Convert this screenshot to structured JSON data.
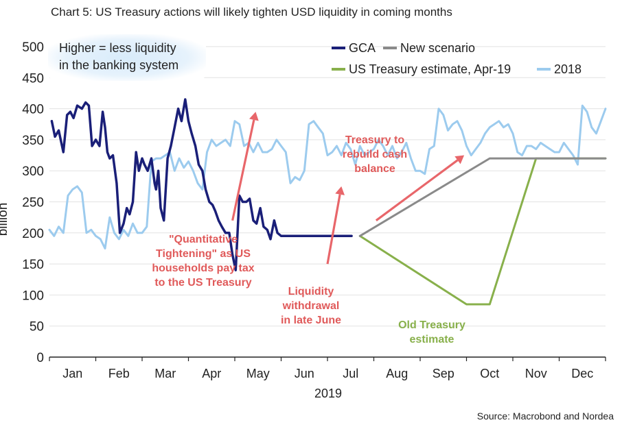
{
  "title": "Chart 5: US Treasury actions will likely tighten USD liquidity in coming months",
  "source": "Source: Macrobond and Nordea",
  "chart_data": {
    "type": "line",
    "ylabel": "billion",
    "xlabel": "2019",
    "ylim": [
      0,
      500
    ],
    "yticks": [
      0,
      50,
      100,
      150,
      200,
      250,
      300,
      350,
      400,
      450,
      500
    ],
    "months": [
      "Jan",
      "Feb",
      "Mar",
      "Apr",
      "May",
      "Jun",
      "Jul",
      "Aug",
      "Sep",
      "Oct",
      "Nov",
      "Dec"
    ],
    "x_unit": "month of year (0 = start of Jan, 12 = end of Dec)",
    "grid": true,
    "legend_placement": "top-right",
    "series": [
      {
        "name": "GCA",
        "color": "#1a1f78",
        "x": [
          0.05,
          0.12,
          0.2,
          0.3,
          0.38,
          0.45,
          0.52,
          0.6,
          0.7,
          0.78,
          0.85,
          0.92,
          1.0,
          1.08,
          1.15,
          1.2,
          1.25,
          1.3,
          1.37,
          1.45,
          1.52,
          1.6,
          1.67,
          1.73,
          1.8,
          1.87,
          1.93,
          2.0,
          2.05,
          2.12,
          2.2,
          2.27,
          2.3,
          2.35,
          2.4,
          2.47,
          2.55,
          2.62,
          2.7,
          2.78,
          2.85,
          2.93,
          3.0,
          3.07,
          3.15,
          3.22,
          3.3,
          3.37,
          3.45,
          3.52,
          3.58,
          3.65,
          3.72,
          3.8,
          3.88,
          3.95,
          4.02,
          4.1,
          4.17,
          4.25,
          4.32,
          4.4,
          4.47,
          4.55,
          4.62,
          4.7,
          4.77,
          4.85,
          4.92,
          5.0,
          5.07,
          5.12,
          5.18,
          5.23,
          5.27,
          5.32,
          5.38,
          5.45,
          5.52,
          5.58,
          5.65,
          5.72,
          5.8,
          5.87,
          5.95,
          6.02,
          6.1,
          6.17,
          6.25,
          6.32,
          6.4,
          6.47,
          6.52
        ],
        "y": [
          380,
          355,
          365,
          330,
          390,
          395,
          385,
          405,
          400,
          410,
          405,
          340,
          350,
          340,
          395,
          370,
          330,
          320,
          325,
          280,
          200,
          215,
          240,
          230,
          250,
          330,
          300,
          320,
          310,
          300,
          320,
          280,
          270,
          300,
          240,
          220,
          320,
          340,
          370,
          400,
          380,
          415,
          380,
          360,
          340,
          310,
          300,
          270,
          250,
          245,
          235,
          220,
          210,
          200,
          200,
          165,
          140,
          260,
          250,
          250,
          255,
          220,
          215,
          240,
          210,
          205,
          190,
          220,
          200,
          195,
          195,
          195,
          195,
          195,
          195,
          195,
          195,
          195,
          195,
          195,
          195,
          195,
          195,
          195,
          195,
          195,
          195,
          195,
          195,
          195,
          195,
          195,
          195
        ]
      },
      {
        "name": "New scenario",
        "color": "#8a8a8a",
        "x": [
          6.7,
          9.5,
          12.0
        ],
        "y": [
          195,
          320,
          320
        ]
      },
      {
        "name": "US Treasury estimate, Apr-19",
        "color": "#88b04b",
        "x": [
          6.7,
          9.0,
          9.5,
          10.5,
          12.0
        ],
        "y": [
          195,
          85,
          85,
          320,
          320
        ]
      },
      {
        "name": "2018",
        "color": "#9ccbee",
        "x": [
          0.0,
          0.1,
          0.2,
          0.3,
          0.4,
          0.5,
          0.6,
          0.7,
          0.8,
          0.9,
          1.0,
          1.1,
          1.2,
          1.3,
          1.4,
          1.5,
          1.6,
          1.7,
          1.8,
          1.9,
          2.0,
          2.1,
          2.2,
          2.3,
          2.4,
          2.5,
          2.6,
          2.7,
          2.8,
          2.9,
          3.0,
          3.1,
          3.2,
          3.3,
          3.4,
          3.5,
          3.6,
          3.7,
          3.8,
          3.9,
          4.0,
          4.1,
          4.2,
          4.3,
          4.4,
          4.5,
          4.6,
          4.7,
          4.8,
          4.9,
          5.0,
          5.1,
          5.2,
          5.3,
          5.4,
          5.5,
          5.6,
          5.7,
          5.8,
          5.9,
          6.0,
          6.1,
          6.2,
          6.3,
          6.4,
          6.5,
          6.6,
          6.7,
          6.8,
          6.9,
          7.0,
          7.1,
          7.2,
          7.3,
          7.4,
          7.5,
          7.6,
          7.7,
          7.8,
          7.9,
          8.0,
          8.1,
          8.2,
          8.3,
          8.4,
          8.5,
          8.6,
          8.7,
          8.8,
          8.9,
          9.0,
          9.1,
          9.2,
          9.3,
          9.4,
          9.5,
          9.6,
          9.7,
          9.8,
          9.9,
          10.0,
          10.1,
          10.2,
          10.3,
          10.4,
          10.5,
          10.6,
          10.7,
          10.8,
          10.9,
          11.0,
          11.1,
          11.2,
          11.3,
          11.4,
          11.5,
          11.6,
          11.7,
          11.8,
          11.9,
          12.0
        ],
        "y": [
          205,
          195,
          210,
          200,
          260,
          270,
          275,
          265,
          200,
          205,
          195,
          190,
          175,
          225,
          200,
          190,
          205,
          195,
          215,
          200,
          200,
          210,
          315,
          320,
          320,
          325,
          330,
          300,
          320,
          305,
          315,
          300,
          280,
          270,
          330,
          350,
          340,
          345,
          350,
          340,
          380,
          375,
          340,
          345,
          330,
          345,
          330,
          330,
          335,
          350,
          340,
          330,
          280,
          290,
          285,
          300,
          375,
          380,
          370,
          360,
          325,
          330,
          340,
          325,
          345,
          335,
          310,
          340,
          325,
          330,
          335,
          350,
          340,
          325,
          340,
          320,
          330,
          345,
          320,
          300,
          300,
          295,
          335,
          340,
          400,
          390,
          365,
          375,
          380,
          365,
          340,
          325,
          335,
          345,
          360,
          370,
          375,
          380,
          370,
          375,
          360,
          330,
          325,
          340,
          340,
          335,
          345,
          340,
          335,
          330,
          330,
          345,
          335,
          325,
          310,
          405,
          395,
          370,
          360,
          380,
          400
        ]
      }
    ],
    "legend": [
      {
        "label": "GCA",
        "color": "#1a1f78"
      },
      {
        "label": "New scenario",
        "color": "#8a8a8a"
      },
      {
        "label": "US Treasury estimate, Apr-19",
        "color": "#88b04b"
      },
      {
        "label": "2018",
        "color": "#9ccbee"
      }
    ],
    "arrows": [
      {
        "from": [
          3.95,
          220
        ],
        "to": [
          4.45,
          395
        ],
        "color": "#e8666a"
      },
      {
        "from": [
          6.0,
          150
        ],
        "to": [
          6.3,
          275
        ],
        "color": "#e8666a"
      },
      {
        "from": [
          7.05,
          220
        ],
        "to": [
          8.95,
          325
        ],
        "color": "#e8666a"
      }
    ],
    "annotations": {
      "note": [
        "Higher = less liquidity",
        "in the banking system"
      ],
      "qt": [
        "\"Quantitative",
        "Tightening\" as US",
        "households pay tax",
        "to the US Treasury"
      ],
      "withdrawal": [
        "Liquidity",
        "withdrawal",
        "in late June"
      ],
      "rebuild": [
        "Treasury to",
        "rebuild cash",
        "balance"
      ],
      "old_estimate": [
        "Old Treasury",
        "estimate"
      ]
    }
  }
}
